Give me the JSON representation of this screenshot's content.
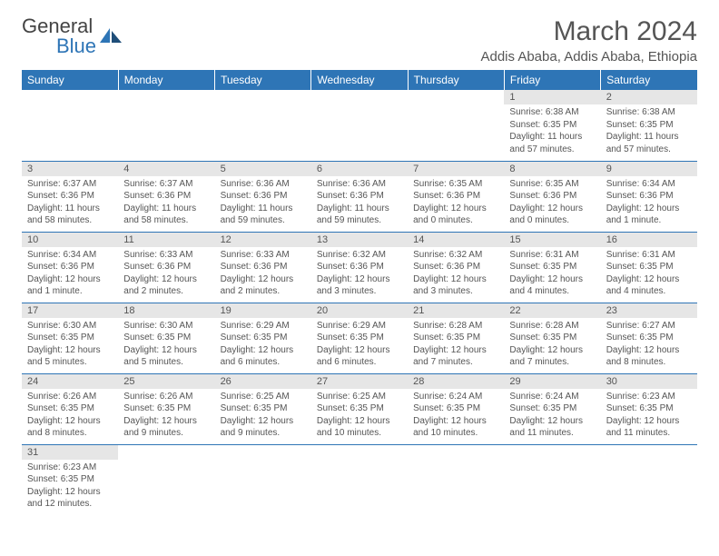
{
  "brand": {
    "text1": "General",
    "text2": "Blue"
  },
  "title": "March 2024",
  "location": "Addis Ababa, Addis Ababa, Ethiopia",
  "colors": {
    "header_bg": "#2e75b6",
    "daynum_bg": "#e6e6e6",
    "text": "#555555",
    "border": "#2e75b6"
  },
  "days_of_week": [
    "Sunday",
    "Monday",
    "Tuesday",
    "Wednesday",
    "Thursday",
    "Friday",
    "Saturday"
  ],
  "weeks": [
    [
      null,
      null,
      null,
      null,
      null,
      {
        "n": "1",
        "sunrise": "6:38 AM",
        "sunset": "6:35 PM",
        "daylight": "11 hours and 57 minutes."
      },
      {
        "n": "2",
        "sunrise": "6:38 AM",
        "sunset": "6:35 PM",
        "daylight": "11 hours and 57 minutes."
      }
    ],
    [
      {
        "n": "3",
        "sunrise": "6:37 AM",
        "sunset": "6:36 PM",
        "daylight": "11 hours and 58 minutes."
      },
      {
        "n": "4",
        "sunrise": "6:37 AM",
        "sunset": "6:36 PM",
        "daylight": "11 hours and 58 minutes."
      },
      {
        "n": "5",
        "sunrise": "6:36 AM",
        "sunset": "6:36 PM",
        "daylight": "11 hours and 59 minutes."
      },
      {
        "n": "6",
        "sunrise": "6:36 AM",
        "sunset": "6:36 PM",
        "daylight": "11 hours and 59 minutes."
      },
      {
        "n": "7",
        "sunrise": "6:35 AM",
        "sunset": "6:36 PM",
        "daylight": "12 hours and 0 minutes."
      },
      {
        "n": "8",
        "sunrise": "6:35 AM",
        "sunset": "6:36 PM",
        "daylight": "12 hours and 0 minutes."
      },
      {
        "n": "9",
        "sunrise": "6:34 AM",
        "sunset": "6:36 PM",
        "daylight": "12 hours and 1 minute."
      }
    ],
    [
      {
        "n": "10",
        "sunrise": "6:34 AM",
        "sunset": "6:36 PM",
        "daylight": "12 hours and 1 minute."
      },
      {
        "n": "11",
        "sunrise": "6:33 AM",
        "sunset": "6:36 PM",
        "daylight": "12 hours and 2 minutes."
      },
      {
        "n": "12",
        "sunrise": "6:33 AM",
        "sunset": "6:36 PM",
        "daylight": "12 hours and 2 minutes."
      },
      {
        "n": "13",
        "sunrise": "6:32 AM",
        "sunset": "6:36 PM",
        "daylight": "12 hours and 3 minutes."
      },
      {
        "n": "14",
        "sunrise": "6:32 AM",
        "sunset": "6:36 PM",
        "daylight": "12 hours and 3 minutes."
      },
      {
        "n": "15",
        "sunrise": "6:31 AM",
        "sunset": "6:35 PM",
        "daylight": "12 hours and 4 minutes."
      },
      {
        "n": "16",
        "sunrise": "6:31 AM",
        "sunset": "6:35 PM",
        "daylight": "12 hours and 4 minutes."
      }
    ],
    [
      {
        "n": "17",
        "sunrise": "6:30 AM",
        "sunset": "6:35 PM",
        "daylight": "12 hours and 5 minutes."
      },
      {
        "n": "18",
        "sunrise": "6:30 AM",
        "sunset": "6:35 PM",
        "daylight": "12 hours and 5 minutes."
      },
      {
        "n": "19",
        "sunrise": "6:29 AM",
        "sunset": "6:35 PM",
        "daylight": "12 hours and 6 minutes."
      },
      {
        "n": "20",
        "sunrise": "6:29 AM",
        "sunset": "6:35 PM",
        "daylight": "12 hours and 6 minutes."
      },
      {
        "n": "21",
        "sunrise": "6:28 AM",
        "sunset": "6:35 PM",
        "daylight": "12 hours and 7 minutes."
      },
      {
        "n": "22",
        "sunrise": "6:28 AM",
        "sunset": "6:35 PM",
        "daylight": "12 hours and 7 minutes."
      },
      {
        "n": "23",
        "sunrise": "6:27 AM",
        "sunset": "6:35 PM",
        "daylight": "12 hours and 8 minutes."
      }
    ],
    [
      {
        "n": "24",
        "sunrise": "6:26 AM",
        "sunset": "6:35 PM",
        "daylight": "12 hours and 8 minutes."
      },
      {
        "n": "25",
        "sunrise": "6:26 AM",
        "sunset": "6:35 PM",
        "daylight": "12 hours and 9 minutes."
      },
      {
        "n": "26",
        "sunrise": "6:25 AM",
        "sunset": "6:35 PM",
        "daylight": "12 hours and 9 minutes."
      },
      {
        "n": "27",
        "sunrise": "6:25 AM",
        "sunset": "6:35 PM",
        "daylight": "12 hours and 10 minutes."
      },
      {
        "n": "28",
        "sunrise": "6:24 AM",
        "sunset": "6:35 PM",
        "daylight": "12 hours and 10 minutes."
      },
      {
        "n": "29",
        "sunrise": "6:24 AM",
        "sunset": "6:35 PM",
        "daylight": "12 hours and 11 minutes."
      },
      {
        "n": "30",
        "sunrise": "6:23 AM",
        "sunset": "6:35 PM",
        "daylight": "12 hours and 11 minutes."
      }
    ],
    [
      {
        "n": "31",
        "sunrise": "6:23 AM",
        "sunset": "6:35 PM",
        "daylight": "12 hours and 12 minutes."
      },
      null,
      null,
      null,
      null,
      null,
      null
    ]
  ],
  "labels": {
    "sunrise": "Sunrise:",
    "sunset": "Sunset:",
    "daylight": "Daylight:"
  }
}
